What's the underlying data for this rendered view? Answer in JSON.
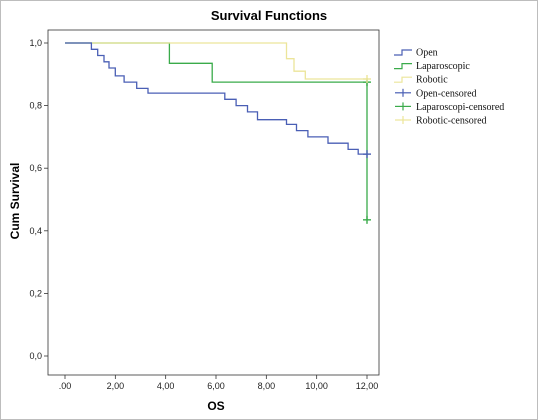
{
  "chart_data": {
    "type": "line",
    "title": "Survival Functions",
    "xlabel": "OS",
    "ylabel": "Cum Survival",
    "xlim": [
      0,
      12.5
    ],
    "ylim": [
      0,
      1.0
    ],
    "xticks": [
      ".00",
      "2,00",
      "4,00",
      "6,00",
      "8,00",
      "10,00",
      "12,00"
    ],
    "xtick_values": [
      0,
      2,
      4,
      6,
      8,
      10,
      12
    ],
    "yticks": [
      "0,0",
      "0,2",
      "0,4",
      "0,6",
      "0,8",
      "1,0"
    ],
    "ytick_values": [
      0,
      0.2,
      0.4,
      0.6,
      0.8,
      1.0
    ],
    "grid": false,
    "legend_position": "right",
    "legend": [
      {
        "label": "Open",
        "color": "#4a5fb5",
        "kind": "line"
      },
      {
        "label": "Laparoscopic",
        "color": "#3aab4a",
        "kind": "line"
      },
      {
        "label": "Robotic",
        "color": "#ece59a",
        "kind": "line"
      },
      {
        "label": "Open-censored",
        "color": "#4a5fb5",
        "kind": "plus"
      },
      {
        "label": "Laparoscopi-censored",
        "color": "#3aab4a",
        "kind": "plus"
      },
      {
        "label": "Robotic-censored",
        "color": "#ece59a",
        "kind": "plus"
      }
    ],
    "series": [
      {
        "name": "Open",
        "color": "#4a5fb5",
        "x": [
          0,
          1.05,
          1.3,
          1.55,
          1.75,
          2.0,
          2.35,
          2.85,
          3.3,
          3.5,
          6.35,
          6.8,
          7.25,
          7.65,
          7.95,
          8.8,
          9.2,
          9.65,
          10.45,
          11.25,
          11.65,
          12.0
        ],
        "y": [
          1.0,
          0.98,
          0.96,
          0.94,
          0.92,
          0.895,
          0.875,
          0.855,
          0.84,
          0.84,
          0.82,
          0.8,
          0.78,
          0.755,
          0.755,
          0.74,
          0.72,
          0.7,
          0.68,
          0.66,
          0.645,
          0.645
        ],
        "censored": [
          [
            12.0,
            0.645
          ]
        ]
      },
      {
        "name": "Laparoscopic",
        "color": "#3aab4a",
        "x": [
          0,
          4.15,
          5.85,
          12.0,
          12.0
        ],
        "y": [
          1.0,
          0.935,
          0.875,
          0.875,
          0.435
        ],
        "censored": [
          [
            12.0,
            0.875
          ],
          [
            12.0,
            0.435
          ]
        ]
      },
      {
        "name": "Robotic",
        "color": "#ece59a",
        "x": [
          0,
          8.8,
          9.1,
          9.55,
          12.0
        ],
        "y": [
          1.0,
          0.95,
          0.91,
          0.885,
          0.885
        ],
        "censored": [
          [
            12.0,
            0.885
          ]
        ]
      }
    ]
  }
}
